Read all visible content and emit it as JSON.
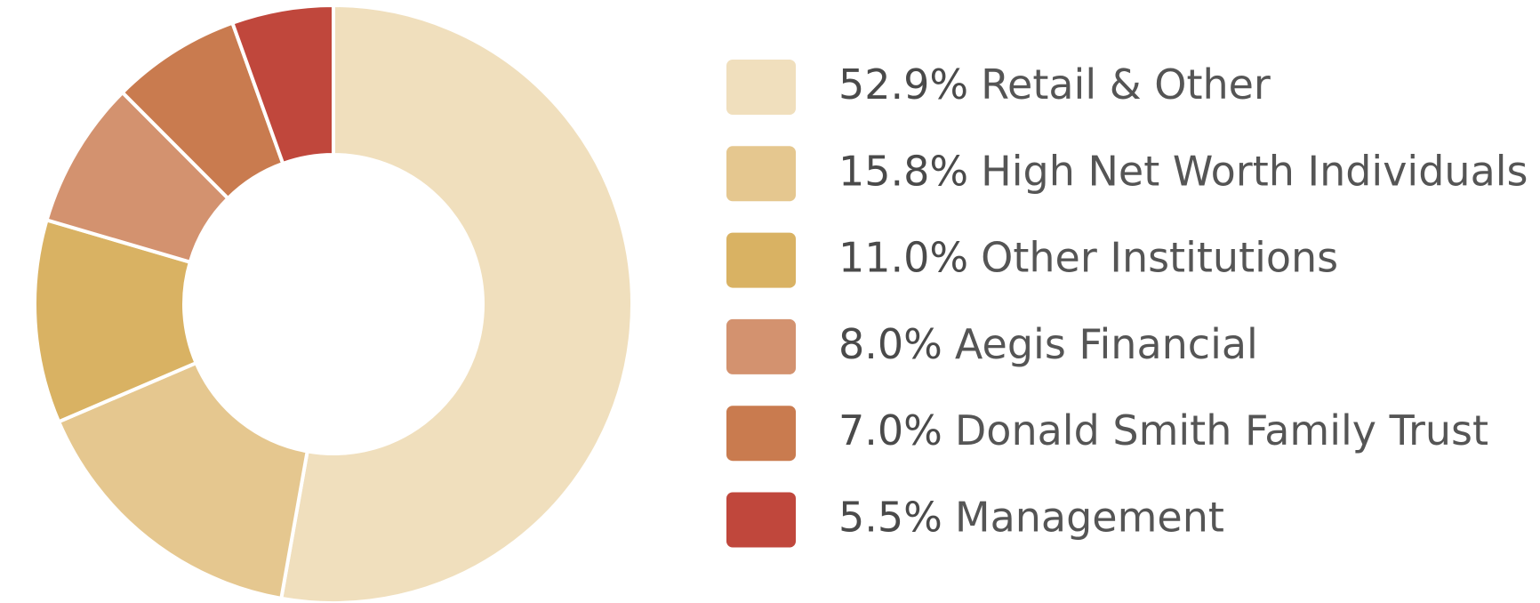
{
  "chart_data": {
    "type": "pie",
    "categories": [
      "Retail & Other",
      "High Net Worth Individuals",
      "Other Institutions",
      "Aegis Financial",
      "Donald Smith Family Trust",
      "Management"
    ],
    "values": [
      52.9,
      15.8,
      11.0,
      8.0,
      7.0,
      5.5
    ],
    "value_labels": [
      "52.9%",
      "15.8%",
      "11.0%",
      "8.0%",
      "7.0%",
      "5.5%"
    ],
    "colors": [
      "#f0dfbd",
      "#e5c78f",
      "#d9b263",
      "#d3926f",
      "#c97b4f",
      "#c0473c"
    ]
  }
}
